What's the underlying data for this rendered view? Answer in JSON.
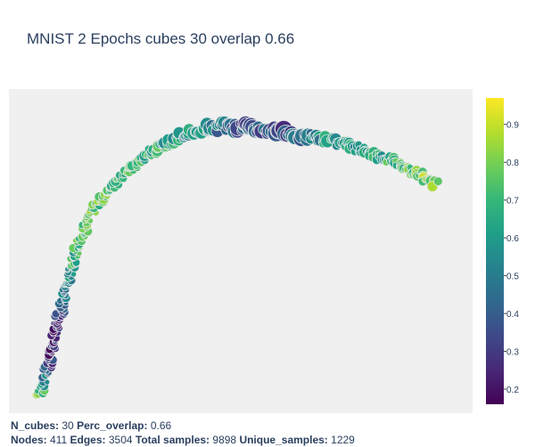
{
  "title": "MNIST 2 Epochs cubes 30 overlap 0.66",
  "footer": {
    "n_cubes_label": "N_cubes:",
    "n_cubes": "30",
    "perc_overlap_label": "Perc_overlap:",
    "perc_overlap": "0.66",
    "nodes_label": "Nodes:",
    "nodes": "411",
    "edges_label": "Edges:",
    "edges": "3504",
    "total_samples_label": "Total samples:",
    "total_samples": "9898",
    "unique_samples_label": "Unique_samples:",
    "unique_samples": "1229"
  },
  "colors": {
    "plot_bg": "#f0f0f0",
    "marker_edge": "#e8e8e8",
    "colorscale": [
      "#440154",
      "#482878",
      "#3e4989",
      "#31688e",
      "#26828e",
      "#1f9e89",
      "#35b779",
      "#6ece58",
      "#b5de2b",
      "#fde725"
    ]
  },
  "chart_data": {
    "type": "scatter",
    "colorbar": {
      "range": [
        0.16,
        0.97
      ],
      "ticks": [
        "0.2",
        "0.3",
        "0.4",
        "0.5",
        "0.6",
        "0.7",
        "0.8",
        "0.9"
      ]
    },
    "x_range": [
      0,
      100
    ],
    "y_range": [
      0,
      100
    ],
    "curve": [
      [
        6.5,
        5.0
      ],
      [
        8.0,
        12.0
      ],
      [
        10.0,
        24.0
      ],
      [
        12.5,
        40.0
      ],
      [
        15.0,
        53.0
      ],
      [
        18.5,
        63.5
      ],
      [
        24.0,
        73.0
      ],
      [
        31.0,
        81.0
      ],
      [
        38.0,
        86.5
      ],
      [
        45.0,
        88.5
      ],
      [
        52.0,
        88.0
      ],
      [
        60.0,
        86.5
      ],
      [
        68.0,
        84.5
      ],
      [
        76.0,
        81.5
      ],
      [
        83.0,
        77.5
      ],
      [
        88.0,
        74.0
      ],
      [
        92.0,
        70.5
      ]
    ],
    "color_profile": [
      [
        0.0,
        0.8
      ],
      [
        0.06,
        0.3
      ],
      [
        0.12,
        0.22
      ],
      [
        0.22,
        0.62
      ],
      [
        0.32,
        0.78
      ],
      [
        0.42,
        0.72
      ],
      [
        0.5,
        0.66
      ],
      [
        0.56,
        0.58
      ],
      [
        0.63,
        0.42
      ],
      [
        0.72,
        0.36
      ],
      [
        0.8,
        0.6
      ],
      [
        0.88,
        0.62
      ],
      [
        1.0,
        0.85
      ]
    ],
    "size_profile": [
      [
        0.0,
        4.0
      ],
      [
        0.3,
        4.0
      ],
      [
        0.48,
        5.0
      ],
      [
        0.62,
        6.5
      ],
      [
        0.72,
        7.5
      ],
      [
        0.84,
        5.0
      ],
      [
        1.0,
        4.5
      ]
    ],
    "node_count": 411
  }
}
